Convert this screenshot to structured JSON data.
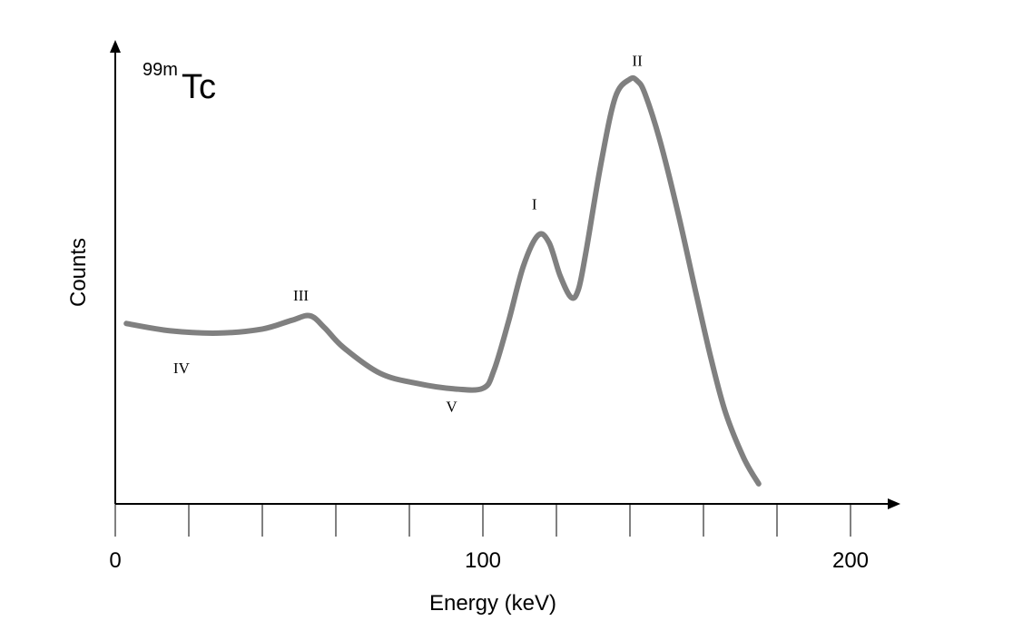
{
  "chart_data": {
    "type": "line",
    "title_superscript": "99m",
    "title_main": "Tc",
    "xlabel": "Energy (keV)",
    "ylabel": "Counts",
    "xlim": [
      0,
      212
    ],
    "ylim": [
      0,
      100
    ],
    "x_tick_step": 20,
    "x_tick_max": 200,
    "x_tick_labels": [
      {
        "value": 0,
        "label": "0"
      },
      {
        "value": 100,
        "label": "100"
      },
      {
        "value": 200,
        "label": "200"
      }
    ],
    "grid": false,
    "series": [
      {
        "name": "spectrum",
        "color": "#808080",
        "x": [
          3,
          15,
          28,
          40,
          48,
          53,
          57,
          62,
          72,
          82,
          92,
          100,
          103,
          107,
          111,
          115,
          118,
          121,
          124,
          126,
          128,
          132,
          136,
          140,
          142,
          144,
          148,
          153,
          158,
          162,
          166,
          171,
          175
        ],
        "y": [
          39.5,
          37.9,
          37.4,
          38.3,
          40.2,
          41.2,
          38.5,
          34.3,
          28.6,
          26.4,
          25.2,
          25.3,
          29.2,
          40,
          52,
          58.8,
          57.2,
          50,
          45.2,
          47,
          55,
          74,
          89,
          93,
          92.6,
          90,
          80,
          64,
          46,
          32,
          20,
          10,
          4.4
        ]
      }
    ],
    "annotations": [
      {
        "text": "I",
        "x": 114,
        "y": 64.5
      },
      {
        "text": "II",
        "x": 142,
        "y": 95.9
      },
      {
        "text": "III",
        "x": 50.5,
        "y": 44.5
      },
      {
        "text": "IV",
        "x": 18,
        "y": 28.6
      },
      {
        "text": "V",
        "x": 91.5,
        "y": 20.2
      }
    ]
  }
}
